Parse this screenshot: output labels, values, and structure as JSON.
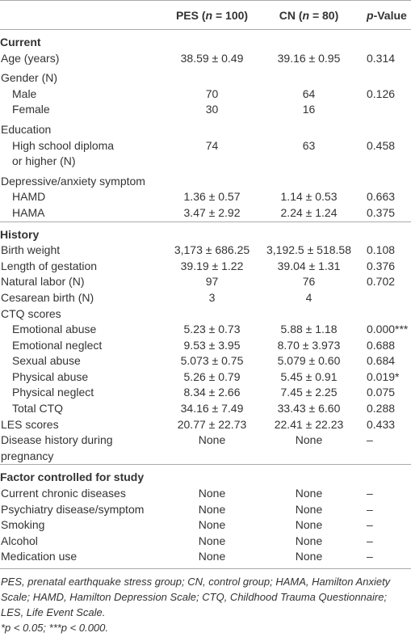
{
  "table": {
    "header": [
      {
        "parts": [
          "PES (",
          "n",
          " = 100)"
        ],
        "italic": 1
      },
      {
        "parts": [
          "CN (",
          "n",
          " = 80)"
        ],
        "italic": 1
      },
      {
        "parts": [
          "p",
          "-Value"
        ],
        "italic": 0
      }
    ],
    "sections": [
      {
        "title": "Current",
        "rows": [
          {
            "label": [
              "Age (years)"
            ],
            "pes": "38.59 ± 0.49",
            "cn": "39.16 ± 0.95",
            "p": "0.314"
          },
          {
            "label": [
              "Gender (N)"
            ],
            "children": [
              {
                "label": [
                  "Male"
                ],
                "pes": "70",
                "cn": "64",
                "p": "0.126"
              },
              {
                "label": [
                  "Female"
                ],
                "pes": "30",
                "cn": "16"
              }
            ]
          },
          {
            "label": [
              "Education"
            ],
            "children": [
              {
                "label": [
                  "High school diploma",
                  "or higher (N)"
                ],
                "pes": "74",
                "cn": "63",
                "p": "0.458"
              }
            ]
          },
          {
            "label": [
              "Depressive/anxiety symptom"
            ],
            "children": [
              {
                "label": [
                  "HAMD"
                ],
                "pes": "1.36 ± 0.57",
                "cn": "1.14 ± 0.53",
                "p": "0.663"
              },
              {
                "label": [
                  "HAMA"
                ],
                "pes": "3.47 ± 2.92",
                "cn": "2.24 ± 1.24",
                "p": "0.375"
              }
            ]
          }
        ]
      },
      {
        "title": "History",
        "rows": [
          {
            "label": [
              "Birth weight"
            ],
            "pes": "3,173 ± 686.25",
            "cn": "3,192.5 ± 518.58",
            "p": "0.108"
          },
          {
            "label": [
              "Length of gestation"
            ],
            "pes": "39.19 ± 1.22",
            "cn": "39.04 ± 1.31",
            "p": "0.376"
          },
          {
            "label": [
              "Natural labor (N)"
            ],
            "pes": "97",
            "cn": "76",
            "p": "0.702"
          },
          {
            "label": [
              "Cesarean birth (N)"
            ],
            "pes": "3",
            "cn": "4"
          },
          {
            "label": [
              "CTQ scores"
            ],
            "tight": true,
            "children": [
              {
                "label": [
                  "Emotional abuse"
                ],
                "pes": "5.23 ± 0.73",
                "cn": "5.88 ± 1.18",
                "p": "0.000***"
              },
              {
                "label": [
                  "Emotional neglect"
                ],
                "pes": "9.53 ± 3.95",
                "cn": "8.70 ± 3.973",
                "p": "0.688"
              },
              {
                "label": [
                  "Sexual abuse"
                ],
                "pes": "5.073 ± 0.75",
                "cn": "5.079 ± 0.60",
                "p": "0.684"
              },
              {
                "label": [
                  "Physical abuse"
                ],
                "pes": "5.26 ± 0.79",
                "cn": "5.45 ± 0.91",
                "p": "0.019*"
              },
              {
                "label": [
                  "Physical neglect"
                ],
                "pes": "8.34 ± 2.66",
                "cn": "7.45 ± 2.25",
                "p": "0.075"
              },
              {
                "label": [
                  "Total CTQ"
                ],
                "pes": "34.16 ± 7.49",
                "cn": "33.43 ± 6.60",
                "p": "0.288"
              }
            ]
          },
          {
            "label": [
              "LES scores"
            ],
            "pes": "20.77 ± 22.73",
            "cn": "22.41 ± 22.23",
            "p": "0.433"
          },
          {
            "label": [
              "Disease history during",
              "pregnancy"
            ],
            "pes": "None",
            "cn": "None",
            "p": "–"
          }
        ]
      },
      {
        "title": "Factor controlled for study",
        "rows": [
          {
            "label": [
              "Current chronic diseases"
            ],
            "pes": "None",
            "cn": "None",
            "p": "–"
          },
          {
            "label": [
              "Psychiatry disease/symptom"
            ],
            "pes": "None",
            "cn": "None",
            "p": "–"
          },
          {
            "label": [
              "Smoking"
            ],
            "pes": "None",
            "cn": "None",
            "p": "–"
          },
          {
            "label": [
              "Alcohol"
            ],
            "pes": "None",
            "cn": "None",
            "p": "–"
          },
          {
            "label": [
              "Medication use"
            ],
            "pes": "None",
            "cn": "None",
            "p": "–"
          }
        ]
      }
    ],
    "footnotes": [
      "PES, prenatal earthquake stress group; CN, control group; HAMA, Hamilton Anxiety Scale; HAMD, Hamilton Depression Scale; CTQ, Childhood Trauma Questionnaire; LES, Life Event Scale.",
      "*p < 0.05; ***p < 0.000."
    ]
  }
}
